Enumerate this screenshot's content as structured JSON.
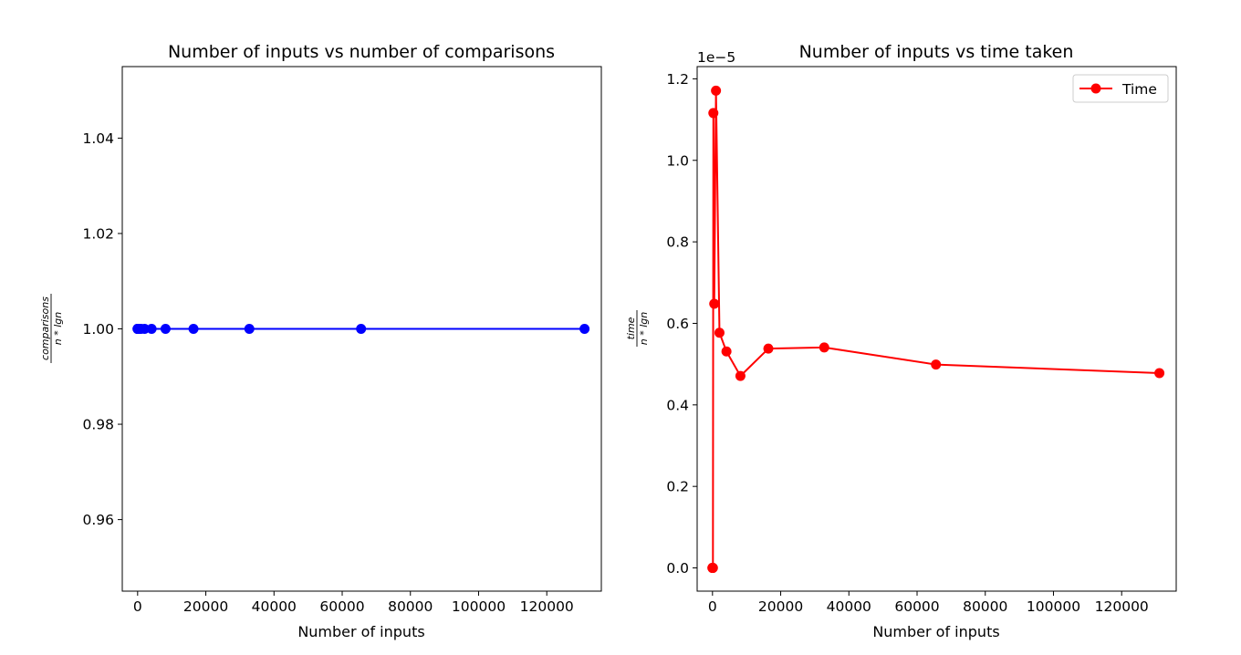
{
  "chart_data": [
    {
      "type": "line",
      "title": "Number of inputs vs number of comparisons",
      "xlabel": "Number of inputs",
      "ylabel_numerator": "comparisons",
      "ylabel_denominator": "n * lgn",
      "xlim": [
        -4500,
        136000
      ],
      "ylim": [
        0.945,
        1.055
      ],
      "xticks": [
        0,
        20000,
        40000,
        60000,
        80000,
        100000,
        120000
      ],
      "xtick_labels": [
        "0",
        "20000",
        "40000",
        "60000",
        "80000",
        "100000",
        "120000"
      ],
      "yticks": [
        0.96,
        0.98,
        1.0,
        1.02,
        1.04
      ],
      "ytick_labels": [
        "0.96",
        "0.98",
        "1.00",
        "1.02",
        "1.04"
      ],
      "grid": false,
      "legend": null,
      "series": [
        {
          "color": "#0000ff",
          "marker": "circle",
          "x": [
            2,
            4,
            8,
            16,
            32,
            64,
            128,
            256,
            512,
            1024,
            2048,
            4096,
            8192,
            16384,
            32768,
            65536,
            131072
          ],
          "y": [
            1,
            1,
            1,
            1,
            1,
            1,
            1,
            1,
            1,
            1,
            1,
            1,
            1,
            1,
            1,
            1,
            1
          ]
        }
      ]
    },
    {
      "type": "line",
      "title": "Number of inputs vs time taken",
      "xlabel": "Number of inputs",
      "ylabel_numerator": "time",
      "ylabel_denominator": "n * lgn",
      "offset_text": "1e−5",
      "xlim": [
        -4500,
        136000
      ],
      "ylim": [
        -0.057,
        1.23
      ],
      "xticks": [
        0,
        20000,
        40000,
        60000,
        80000,
        100000,
        120000
      ],
      "xtick_labels": [
        "0",
        "20000",
        "40000",
        "60000",
        "80000",
        "100000",
        "120000"
      ],
      "yticks": [
        0.0,
        0.2,
        0.4,
        0.6,
        0.8,
        1.0,
        1.2
      ],
      "ytick_labels": [
        "0.0",
        "0.2",
        "0.4",
        "0.6",
        "0.8",
        "1.0",
        "1.2"
      ],
      "grid": false,
      "legend": "top-right",
      "series": [
        {
          "name": "Time",
          "color": "#ff0000",
          "marker": "circle",
          "x": [
            2,
            4,
            8,
            16,
            32,
            64,
            128,
            256,
            512,
            1024,
            2048,
            4096,
            8192,
            16384,
            32768,
            65536,
            131072
          ],
          "y": [
            0.0,
            0.0,
            0.0,
            0.0,
            0.0,
            0.0,
            0.0,
            1.116,
            0.648,
            1.171,
            0.577,
            0.531,
            0.471,
            0.538,
            0.541,
            0.499,
            0.478
          ]
        }
      ]
    }
  ]
}
